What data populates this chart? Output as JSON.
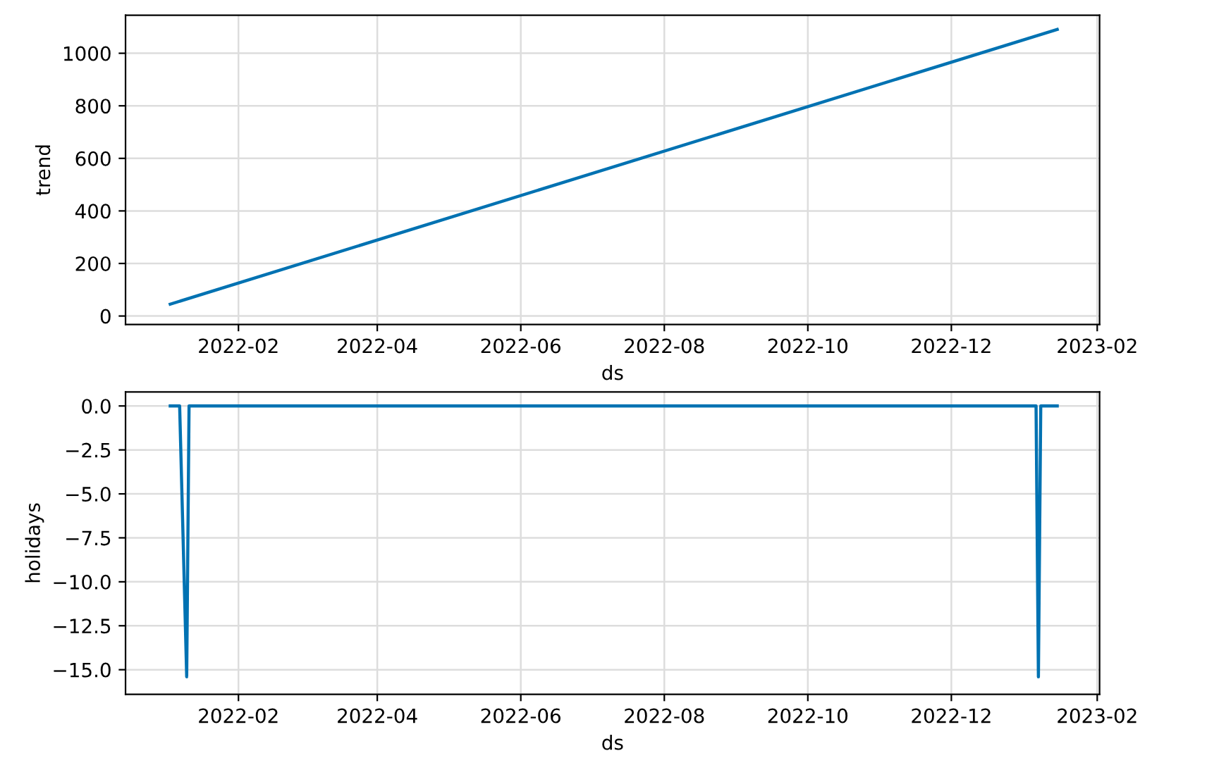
{
  "chart_data": [
    {
      "type": "line",
      "xlabel": "ds",
      "ylabel": "trend",
      "grid": true,
      "marker": "none",
      "line_style": "solid",
      "x": [
        "2022-01-03",
        "2023-01-15"
      ],
      "series": [
        {
          "color": "#0072b2",
          "values": [
            45,
            1091
          ]
        }
      ],
      "xlim": [
        "2021-12-15",
        "2023-02-02"
      ],
      "xticks": [
        {
          "value": "2022-02-01",
          "label": "2022-02"
        },
        {
          "value": "2022-04-01",
          "label": "2022-04"
        },
        {
          "value": "2022-06-01",
          "label": "2022-06"
        },
        {
          "value": "2022-08-01",
          "label": "2022-08"
        },
        {
          "value": "2022-10-01",
          "label": "2022-10"
        },
        {
          "value": "2022-12-01",
          "label": "2022-12"
        },
        {
          "value": "2023-02-01",
          "label": "2023-02"
        }
      ],
      "ylim": [
        -32,
        1145
      ],
      "yticks": [
        0,
        200,
        400,
        600,
        800,
        1000
      ]
    },
    {
      "type": "line",
      "xlabel": "ds",
      "ylabel": "holidays",
      "grid": true,
      "marker": "none",
      "line_style": "solid",
      "x": [
        "2022-01-03",
        "2022-01-07",
        "2022-01-10",
        "2022-01-11",
        "2023-01-06",
        "2023-01-07",
        "2023-01-08",
        "2023-01-15"
      ],
      "series": [
        {
          "color": "#0072b2",
          "values": [
            0,
            0,
            -15.4,
            0,
            0,
            -15.4,
            0,
            0
          ]
        }
      ],
      "xlim": [
        "2021-12-15",
        "2023-02-02"
      ],
      "xticks": [
        {
          "value": "2022-02-01",
          "label": "2022-02"
        },
        {
          "value": "2022-04-01",
          "label": "2022-04"
        },
        {
          "value": "2022-06-01",
          "label": "2022-06"
        },
        {
          "value": "2022-08-01",
          "label": "2022-08"
        },
        {
          "value": "2022-10-01",
          "label": "2022-10"
        },
        {
          "value": "2022-12-01",
          "label": "2022-12"
        },
        {
          "value": "2023-02-01",
          "label": "2023-02"
        }
      ],
      "ylim": [
        -16.4,
        0.8
      ],
      "yticks": [
        {
          "value": 0,
          "label": "0.0"
        },
        {
          "value": -2.5,
          "label": "−2.5"
        },
        {
          "value": -5,
          "label": "−5.0"
        },
        {
          "value": -7.5,
          "label": "−7.5"
        },
        {
          "value": -10,
          "label": "−10.0"
        },
        {
          "value": -12.5,
          "label": "−12.5"
        },
        {
          "value": -15,
          "label": "−15.0"
        }
      ]
    }
  ]
}
